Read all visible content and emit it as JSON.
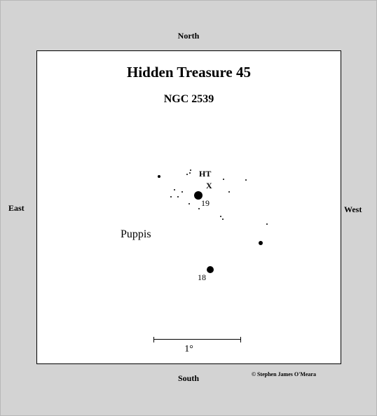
{
  "title": "Hidden Treasure 45",
  "subtitle": "NGC 2539",
  "directions": {
    "north": "North",
    "south": "South",
    "east": "East",
    "west": "West"
  },
  "labels": {
    "target_code": "HT",
    "target_marker": "X",
    "star_19": "19",
    "star_18": "18",
    "constellation": "Puppis"
  },
  "scale_label": "1°",
  "copyright": "© Stephen James O'Meara",
  "colors": {
    "frame_background": "#d3d3d3",
    "chart_background": "#ffffff",
    "ink": "#000000"
  }
}
